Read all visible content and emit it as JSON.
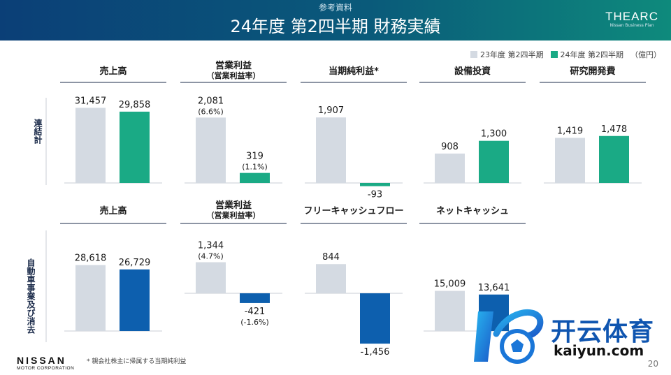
{
  "header": {
    "subtitle": "参考資料",
    "title": "24年度 第2四半期 財務実績",
    "logo_main": "THEARC",
    "logo_sub": "Nissan Business Plan"
  },
  "legend": {
    "items": [
      {
        "label": "23年度 第2四半期",
        "color": "#d4dae2"
      },
      {
        "label": "24年度 第2四半期",
        "color": "#1aaa85"
      }
    ],
    "unit": "（億円）"
  },
  "rows": [
    {
      "label": "連結計"
    },
    {
      "label": "自動車事業及び消去"
    }
  ],
  "chart_data": [
    {
      "type": "bar",
      "title": "売上高",
      "subtitle": "",
      "categories": [
        "23年度 第2四半期",
        "24年度 第2四半期"
      ],
      "values": [
        31457,
        29858
      ],
      "labels": [
        "31,457",
        "29,858"
      ],
      "sublabels": [
        "",
        ""
      ],
      "colors": [
        "#d4dae2",
        "#1aaa85"
      ]
    },
    {
      "type": "bar",
      "title": "営業利益",
      "subtitle": "（営業利益率）",
      "categories": [
        "23年度 第2四半期",
        "24年度 第2四半期"
      ],
      "values": [
        2081,
        319
      ],
      "labels": [
        "2,081",
        "319"
      ],
      "sublabels": [
        "(6.6%)",
        "(1.1%)"
      ],
      "colors": [
        "#d4dae2",
        "#1aaa85"
      ]
    },
    {
      "type": "bar",
      "title": "当期純利益*",
      "subtitle": "",
      "categories": [
        "23年度 第2四半期",
        "24年度 第2四半期"
      ],
      "values": [
        1907,
        -93
      ],
      "labels": [
        "1,907",
        "-93"
      ],
      "sublabels": [
        "",
        ""
      ],
      "colors": [
        "#d4dae2",
        "#1aaa85"
      ]
    },
    {
      "type": "bar",
      "title": "設備投資",
      "subtitle": "",
      "categories": [
        "23年度 第2四半期",
        "24年度 第2四半期"
      ],
      "values": [
        908,
        1300
      ],
      "labels": [
        "908",
        "1,300"
      ],
      "sublabels": [
        "",
        ""
      ],
      "colors": [
        "#d4dae2",
        "#1aaa85"
      ]
    },
    {
      "type": "bar",
      "title": "研究開発費",
      "subtitle": "",
      "categories": [
        "23年度 第2四半期",
        "24年度 第2四半期"
      ],
      "values": [
        1419,
        1478
      ],
      "labels": [
        "1,419",
        "1,478"
      ],
      "sublabels": [
        "",
        ""
      ],
      "colors": [
        "#d4dae2",
        "#1aaa85"
      ]
    },
    {
      "type": "bar",
      "title": "売上高",
      "subtitle": "",
      "categories": [
        "23年度 第2四半期",
        "24年度 第2四半期"
      ],
      "values": [
        28618,
        26729
      ],
      "labels": [
        "28,618",
        "26,729"
      ],
      "sublabels": [
        "",
        ""
      ],
      "colors": [
        "#d4dae2",
        "#0d5fae"
      ]
    },
    {
      "type": "bar",
      "title": "営業利益",
      "subtitle": "（営業利益率）",
      "categories": [
        "23年度 第2四半期",
        "24年度 第2四半期"
      ],
      "values": [
        1344,
        -421
      ],
      "labels": [
        "1,344",
        "-421"
      ],
      "sublabels": [
        "(4.7%)",
        "(-1.6%)"
      ],
      "colors": [
        "#d4dae2",
        "#0d5fae"
      ]
    },
    {
      "type": "bar",
      "title": "フリーキャッシュフロー",
      "subtitle": "",
      "categories": [
        "23年度 第2四半期",
        "24年度 第2四半期"
      ],
      "values": [
        844,
        -1456
      ],
      "labels": [
        "844",
        "-1,456"
      ],
      "sublabels": [
        "",
        ""
      ],
      "colors": [
        "#d4dae2",
        "#0d5fae"
      ]
    },
    {
      "type": "bar",
      "title": "ネットキャッシュ",
      "subtitle": "",
      "categories": [
        "23年度 第2四半期",
        "24年度 第2四半期"
      ],
      "values": [
        15009,
        13641
      ],
      "labels": [
        "15,009",
        "13,641"
      ],
      "sublabels": [
        "",
        ""
      ],
      "colors": [
        "#d4dae2",
        "#0d5fae"
      ]
    }
  ],
  "footnote": "* 親会社株主に帰属する当期純利益",
  "brand": {
    "name": "NISSAN",
    "sub": "MOTOR CORPORATION"
  },
  "page_number": "20",
  "watermark": {
    "cn": "开云体育",
    "en": "kaiyun.com"
  }
}
